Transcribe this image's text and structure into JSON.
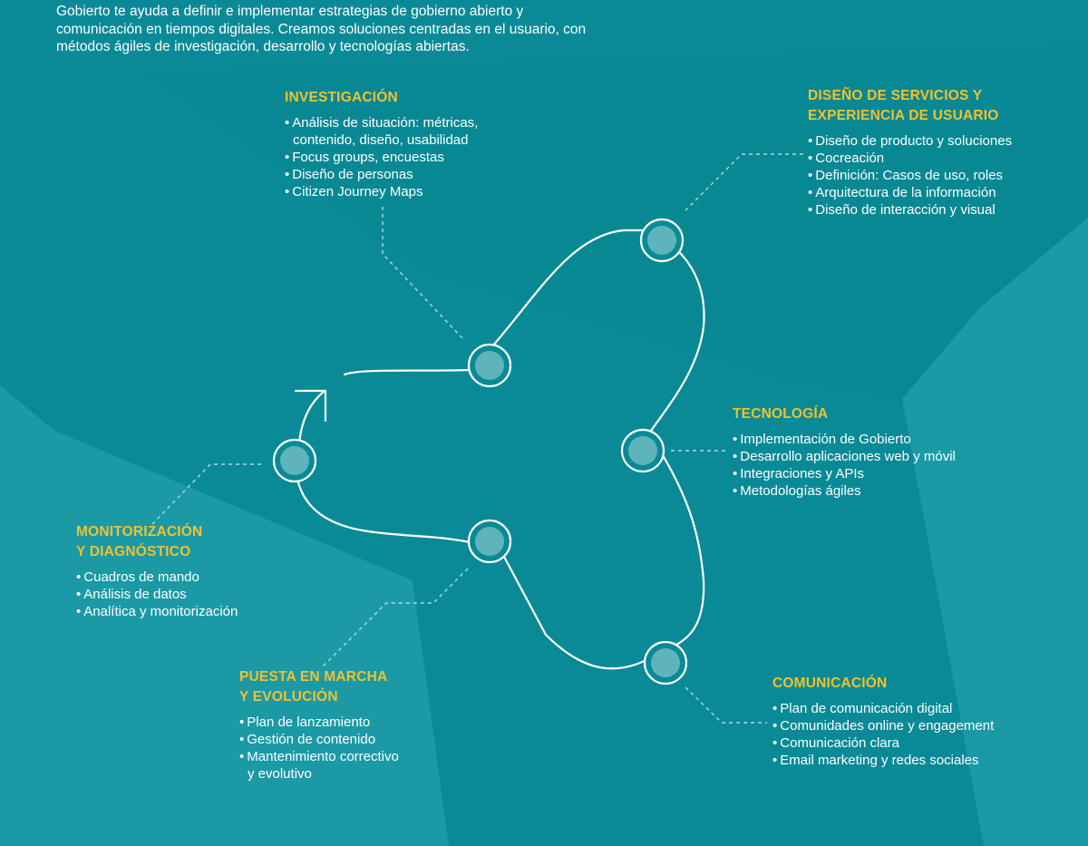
{
  "intro_text": [
    "Gobierto te ayuda a definir e implementar estrategias de gobierno abierto y",
    "comunicación en tiempos digitales. Creamos soluciones centradas en el usuario, con",
    "métodos ágiles de investigación, desarrollo y tecnologías abiertas."
  ],
  "colors": {
    "background": "#1b9aa6",
    "background_dark": "#0a8a96",
    "heading": "#f2c12e",
    "text": "#ffffff",
    "node_fill": "#5fb4bb",
    "connector": "#9fd6dc"
  },
  "stages": {
    "investigacion": {
      "title": [
        "INVESTIGACIÓN"
      ],
      "items": [
        [
          "Análisis de situación: métricas,",
          "contenido, diseño, usabilidad"
        ],
        [
          "Focus groups, encuestas"
        ],
        [
          "Diseño de personas"
        ],
        [
          "Citizen Journey Maps"
        ]
      ]
    },
    "diseno": {
      "title": [
        "DISEÑO DE SERVICIOS Y",
        "EXPERIENCIA DE USUARIO"
      ],
      "items": [
        [
          "Diseño de producto y soluciones"
        ],
        [
          "Cocreación"
        ],
        [
          "Definición: Casos de uso, roles"
        ],
        [
          "Arquitectura de la información"
        ],
        [
          "Diseño de interacción y visual"
        ]
      ]
    },
    "tecnologia": {
      "title": [
        "TECNOLOGÍA"
      ],
      "items": [
        [
          "Implementación de Gobierto"
        ],
        [
          "Desarrollo aplicaciones web y móvil"
        ],
        [
          "Integraciones y APIs"
        ],
        [
          "Metodologías ágiles"
        ]
      ]
    },
    "comunicacion": {
      "title": [
        "COMUNICACIÓN"
      ],
      "items": [
        [
          "Plan de comunicación digital"
        ],
        [
          "Comunidades online y engagement"
        ],
        [
          "Comunicación clara"
        ],
        [
          "Email marketing y redes sociales"
        ]
      ]
    },
    "puesta": {
      "title": [
        "PUESTA EN MARCHA",
        "Y EVOLUCIÓN"
      ],
      "items": [
        [
          "Plan de lanzamiento"
        ],
        [
          "Gestión de contenido"
        ],
        [
          "Mantenimiento correctivo",
          "y evolutivo"
        ]
      ]
    },
    "monitorizacion": {
      "title": [
        "MONITORIZACIÓN",
        "Y DIAGNÓSTICO"
      ],
      "items": [
        [
          "Cuadros de mando"
        ],
        [
          "Análisis de datos"
        ],
        [
          "Analítica y monitorización"
        ]
      ]
    }
  }
}
